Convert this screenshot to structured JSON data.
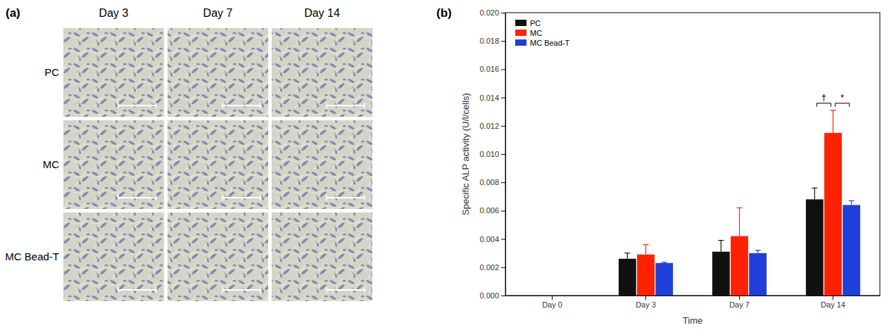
{
  "panel_a": {
    "label": "(a)",
    "columns": [
      "Day 3",
      "Day 7",
      "Day 14"
    ],
    "rows": [
      "PC",
      "MC",
      "MC Bead-T"
    ]
  },
  "panel_b": {
    "label": "(b)"
  },
  "chart_data": {
    "type": "bar",
    "x_label": "Time",
    "y_label": "Specific ALP activity (U/l/cells)",
    "categories": [
      "Day 0",
      "Day 3",
      "Day 7",
      "Day 14"
    ],
    "series": [
      {
        "name": "PC",
        "color": "#111111",
        "values": [
          null,
          0.0026,
          0.0031,
          0.0068
        ],
        "errors": [
          null,
          0.0004,
          0.0008,
          0.0008
        ]
      },
      {
        "name": "MC",
        "color": "#ff2200",
        "values": [
          null,
          0.0029,
          0.0042,
          0.0115
        ],
        "errors": [
          null,
          0.0007,
          0.002,
          0.0016
        ]
      },
      {
        "name": "MC Bead-T",
        "color": "#1f3fd6",
        "values": [
          null,
          0.0023,
          0.003,
          0.0064
        ],
        "errors": [
          null,
          5e-05,
          0.0002,
          0.0003
        ]
      }
    ],
    "ylim": [
      0,
      0.02
    ],
    "yticks": [
      {
        "value": 0,
        "label": "0.000"
      },
      {
        "value": 0.002,
        "label": "0.002"
      },
      {
        "value": 0.004,
        "label": "0.004"
      },
      {
        "value": 0.006,
        "label": "0.006"
      },
      {
        "value": 0.008,
        "label": "0.008"
      },
      {
        "value": 0.01,
        "label": "0.010"
      },
      {
        "value": 0.012,
        "label": "0.012"
      },
      {
        "value": 0.014,
        "label": "0.014"
      },
      {
        "value": 0.016,
        "label": "0.016"
      },
      {
        "value": 0.018,
        "label": "0.018"
      },
      {
        "value": 0.02,
        "label": "0.020"
      }
    ],
    "legend": "top-left",
    "grid": false,
    "annotations": [
      {
        "text": "†",
        "category": "Day 14",
        "between": [
          "PC",
          "MC"
        ]
      },
      {
        "text": "*",
        "category": "Day 14",
        "between": [
          "MC",
          "MC Bead-T"
        ]
      }
    ]
  }
}
